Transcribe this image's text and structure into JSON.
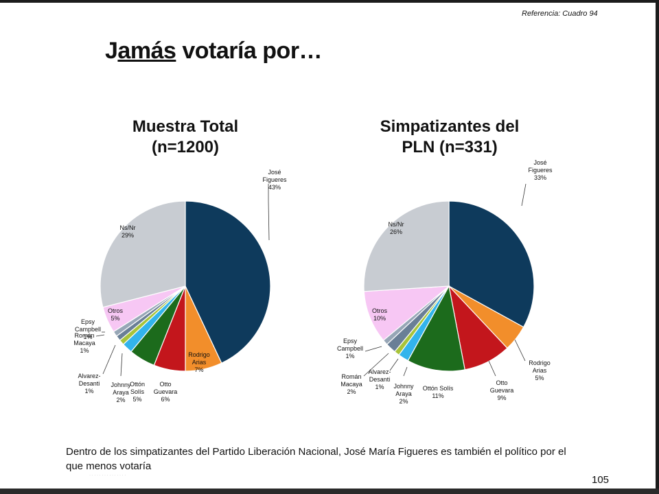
{
  "reference": "Referencia: Cuadro 94",
  "title_prefix": "J",
  "title_underlined": "amás",
  "title_suffix": " votaría por…",
  "caption_line1": "Dentro de los simpatizantes del Partido Liberación Nacional, José María Figueres es también el político por el",
  "caption_line2": "que menos votaría",
  "page_number": "105",
  "chart_data": [
    {
      "type": "pie",
      "title_line1": "Muestra Total",
      "title_line2": "(n=1200)",
      "slices": [
        {
          "label": "José Figueres",
          "value": 43,
          "value_label": "43%",
          "color": "#0e3a5c"
        },
        {
          "label": "Rodrigo Arias",
          "value": 7,
          "value_label": "7%",
          "color": "#f28e2b"
        },
        {
          "label": "Otto Guevara",
          "value": 6,
          "value_label": "6%",
          "color": "#c3161c"
        },
        {
          "label": "Ottón Solís",
          "value": 5,
          "value_label": "5%",
          "color": "#1c6b1c"
        },
        {
          "label": "Johnny Araya",
          "value": 2,
          "value_label": "2%",
          "color": "#32b4ec"
        },
        {
          "label": "Alvarez Desanti",
          "value": 1,
          "value_label": "1%",
          "color": "#a8c33a"
        },
        {
          "label": "Román Macaya",
          "value": 1,
          "value_label": "1%",
          "color": "#6a7f96"
        },
        {
          "label": "Epsy Campbell",
          "value": 1,
          "value_label": "1%",
          "color": "#97a6b6"
        },
        {
          "label": "Otros",
          "value": 5,
          "value_label": "5%",
          "color": "#f7c7f4"
        },
        {
          "label": "Ns/Nr",
          "value": 29,
          "value_label": "29%",
          "color": "#c8ccd2"
        }
      ]
    },
    {
      "type": "pie",
      "title_line1": "Simpatizantes del",
      "title_line2": "PLN (n=331)",
      "slices": [
        {
          "label": "José Figueres",
          "value": 33,
          "value_label": "33%",
          "color": "#0e3a5c"
        },
        {
          "label": "Rodrigo Arias",
          "value": 5,
          "value_label": "5%",
          "color": "#f28e2b"
        },
        {
          "label": "Otto Guevara",
          "value": 9,
          "value_label": "9%",
          "color": "#c3161c"
        },
        {
          "label": "Ottón Solís",
          "value": 11,
          "value_label": "11%",
          "color": "#1c6b1c"
        },
        {
          "label": "Johnny Araya",
          "value": 2,
          "value_label": "2%",
          "color": "#32b4ec"
        },
        {
          "label": "Alvarez Desanti",
          "value": 1,
          "value_label": "1%",
          "color": "#a8c33a"
        },
        {
          "label": "Román Macaya",
          "value": 2,
          "value_label": "2%",
          "color": "#6a7f96"
        },
        {
          "label": "Epsy Campbell",
          "value": 1,
          "value_label": "1%",
          "color": "#97a6b6"
        },
        {
          "label": "Otros",
          "value": 10,
          "value_label": "10%",
          "color": "#f7c7f4"
        },
        {
          "label": "Ns/Nr",
          "value": 26,
          "value_label": "26%",
          "color": "#c8ccd2"
        }
      ]
    }
  ]
}
